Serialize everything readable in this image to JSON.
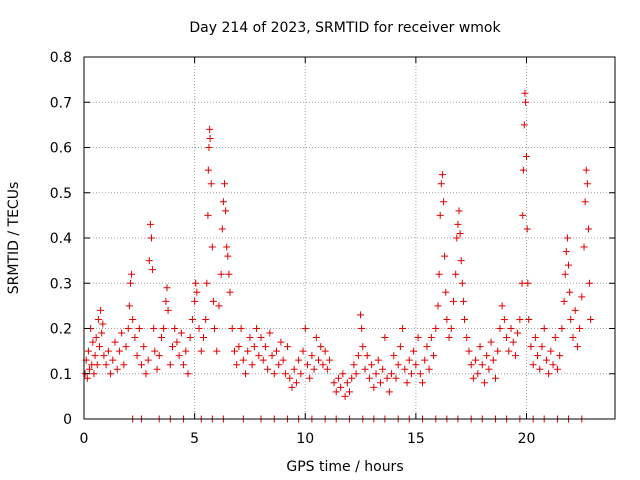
{
  "chart_data": {
    "type": "scatter",
    "title": "Day 214 of 2023, SRMTID for receiver wmok",
    "xlabel": "GPS time / hours",
    "ylabel": "SRMTID / TECUs",
    "xlim": [
      0,
      24
    ],
    "ylim": [
      0,
      0.8
    ],
    "xticks": [
      0,
      5,
      10,
      15,
      20
    ],
    "yticks": [
      0,
      0.1,
      0.2,
      0.3,
      0.4,
      0.5,
      0.6,
      0.7,
      0.8
    ],
    "xtick_labels": [
      "0",
      "5",
      "10",
      "15",
      "20"
    ],
    "ytick_labels": [
      "0",
      "0.1",
      "0.2",
      "0.3",
      "0.4",
      "0.5",
      "0.6",
      "0.7",
      "0.8"
    ],
    "grid": true,
    "marker": "+",
    "color": "#e00000",
    "series": [
      {
        "name": "SRMTID",
        "points": [
          [
            0.05,
            0.1
          ],
          [
            0.1,
            0.13
          ],
          [
            0.15,
            0.09
          ],
          [
            0.2,
            0.15
          ],
          [
            0.25,
            0.11
          ],
          [
            0.3,
            0.2
          ],
          [
            0.35,
            0.12
          ],
          [
            0.4,
            0.17
          ],
          [
            0.45,
            0.1
          ],
          [
            0.5,
            0.14
          ],
          [
            0.55,
            0.18
          ],
          [
            0.6,
            0.12
          ],
          [
            0.65,
            0.22
          ],
          [
            0.7,
            0.16
          ],
          [
            0.75,
            0.24
          ],
          [
            0.8,
            0.19
          ],
          [
            0.85,
            0.21
          ],
          [
            0.9,
            0.14
          ],
          [
            1.0,
            0.12
          ],
          [
            1.1,
            0.15
          ],
          [
            1.2,
            0.1
          ],
          [
            1.3,
            0.13
          ],
          [
            1.4,
            0.17
          ],
          [
            1.5,
            0.11
          ],
          [
            1.6,
            0.15
          ],
          [
            1.7,
            0.19
          ],
          [
            1.8,
            0.12
          ],
          [
            1.9,
            0.16
          ],
          [
            2.0,
            0.2
          ],
          [
            2.05,
            0.25
          ],
          [
            2.1,
            0.3
          ],
          [
            2.15,
            0.32
          ],
          [
            2.2,
            0.22
          ],
          [
            2.3,
            0.18
          ],
          [
            2.4,
            0.14
          ],
          [
            2.5,
            0.2
          ],
          [
            2.6,
            0.12
          ],
          [
            2.7,
            0.16
          ],
          [
            2.8,
            0.1
          ],
          [
            2.9,
            0.13
          ],
          [
            2.95,
            0.35
          ],
          [
            3.0,
            0.43
          ],
          [
            3.05,
            0.4
          ],
          [
            3.1,
            0.33
          ],
          [
            3.15,
            0.2
          ],
          [
            3.2,
            0.15
          ],
          [
            3.3,
            0.11
          ],
          [
            3.4,
            0.14
          ],
          [
            3.5,
            0.18
          ],
          [
            3.6,
            0.2
          ],
          [
            3.7,
            0.26
          ],
          [
            3.75,
            0.29
          ],
          [
            3.8,
            0.24
          ],
          [
            3.9,
            0.12
          ],
          [
            4.0,
            0.16
          ],
          [
            4.1,
            0.2
          ],
          [
            4.2,
            0.17
          ],
          [
            4.3,
            0.14
          ],
          [
            4.4,
            0.19
          ],
          [
            4.5,
            0.12
          ],
          [
            4.6,
            0.15
          ],
          [
            4.7,
            0.1
          ],
          [
            4.8,
            0.18
          ],
          [
            4.9,
            0.22
          ],
          [
            5.0,
            0.26
          ],
          [
            5.05,
            0.3
          ],
          [
            5.1,
            0.28
          ],
          [
            5.2,
            0.2
          ],
          [
            5.3,
            0.15
          ],
          [
            5.4,
            0.18
          ],
          [
            5.5,
            0.22
          ],
          [
            5.55,
            0.3
          ],
          [
            5.6,
            0.45
          ],
          [
            5.62,
            0.55
          ],
          [
            5.65,
            0.6
          ],
          [
            5.68,
            0.64
          ],
          [
            5.7,
            0.62
          ],
          [
            5.75,
            0.52
          ],
          [
            5.8,
            0.38
          ],
          [
            5.85,
            0.26
          ],
          [
            5.9,
            0.2
          ],
          [
            6.0,
            0.15
          ],
          [
            6.1,
            0.25
          ],
          [
            6.2,
            0.32
          ],
          [
            6.25,
            0.42
          ],
          [
            6.3,
            0.48
          ],
          [
            6.35,
            0.52
          ],
          [
            6.4,
            0.46
          ],
          [
            6.45,
            0.38
          ],
          [
            6.5,
            0.36
          ],
          [
            6.55,
            0.32
          ],
          [
            6.6,
            0.28
          ],
          [
            6.7,
            0.2
          ],
          [
            6.8,
            0.15
          ],
          [
            6.9,
            0.12
          ],
          [
            7.0,
            0.16
          ],
          [
            7.1,
            0.2
          ],
          [
            7.2,
            0.13
          ],
          [
            7.3,
            0.1
          ],
          [
            7.4,
            0.15
          ],
          [
            7.5,
            0.18
          ],
          [
            7.6,
            0.12
          ],
          [
            7.7,
            0.16
          ],
          [
            7.8,
            0.2
          ],
          [
            7.9,
            0.14
          ],
          [
            8.0,
            0.18
          ],
          [
            8.1,
            0.13
          ],
          [
            8.2,
            0.16
          ],
          [
            8.3,
            0.11
          ],
          [
            8.4,
            0.19
          ],
          [
            8.5,
            0.14
          ],
          [
            8.6,
            0.1
          ],
          [
            8.7,
            0.15
          ],
          [
            8.8,
            0.12
          ],
          [
            8.9,
            0.17
          ],
          [
            9.0,
            0.13
          ],
          [
            9.1,
            0.1
          ],
          [
            9.2,
            0.16
          ],
          [
            9.3,
            0.09
          ],
          [
            9.4,
            0.07
          ],
          [
            9.5,
            0.11
          ],
          [
            9.6,
            0.08
          ],
          [
            9.7,
            0.13
          ],
          [
            9.8,
            0.1
          ],
          [
            9.9,
            0.15
          ],
          [
            10.0,
            0.2
          ],
          [
            10.1,
            0.12
          ],
          [
            10.2,
            0.09
          ],
          [
            10.3,
            0.14
          ],
          [
            10.4,
            0.11
          ],
          [
            10.5,
            0.18
          ],
          [
            10.6,
            0.13
          ],
          [
            10.7,
            0.16
          ],
          [
            10.8,
            0.12
          ],
          [
            10.9,
            0.15
          ],
          [
            11.0,
            0.11
          ],
          [
            11.1,
            0.13
          ],
          [
            11.3,
            0.08
          ],
          [
            11.4,
            0.06
          ],
          [
            11.5,
            0.09
          ],
          [
            11.6,
            0.07
          ],
          [
            11.7,
            0.1
          ],
          [
            11.8,
            0.05
          ],
          [
            11.9,
            0.08
          ],
          [
            12.0,
            0.06
          ],
          [
            12.1,
            0.09
          ],
          [
            12.2,
            0.12
          ],
          [
            12.3,
            0.1
          ],
          [
            12.4,
            0.14
          ],
          [
            12.5,
            0.23
          ],
          [
            12.55,
            0.2
          ],
          [
            12.6,
            0.16
          ],
          [
            12.7,
            0.11
          ],
          [
            12.8,
            0.14
          ],
          [
            12.9,
            0.09
          ],
          [
            13.0,
            0.12
          ],
          [
            13.1,
            0.07
          ],
          [
            13.2,
            0.1
          ],
          [
            13.3,
            0.13
          ],
          [
            13.4,
            0.08
          ],
          [
            13.5,
            0.11
          ],
          [
            13.6,
            0.18
          ],
          [
            13.7,
            0.09
          ],
          [
            13.8,
            0.06
          ],
          [
            13.9,
            0.1
          ],
          [
            14.0,
            0.14
          ],
          [
            14.1,
            0.09
          ],
          [
            14.2,
            0.12
          ],
          [
            14.3,
            0.16
          ],
          [
            14.4,
            0.2
          ],
          [
            14.5,
            0.11
          ],
          [
            14.6,
            0.08
          ],
          [
            14.7,
            0.13
          ],
          [
            14.8,
            0.1
          ],
          [
            14.9,
            0.15
          ],
          [
            15.0,
            0.12
          ],
          [
            15.1,
            0.18
          ],
          [
            15.2,
            0.1
          ],
          [
            15.3,
            0.08
          ],
          [
            15.4,
            0.13
          ],
          [
            15.5,
            0.16
          ],
          [
            15.6,
            0.11
          ],
          [
            15.7,
            0.18
          ],
          [
            15.8,
            0.14
          ],
          [
            15.9,
            0.2
          ],
          [
            16.0,
            0.25
          ],
          [
            16.05,
            0.32
          ],
          [
            16.1,
            0.45
          ],
          [
            16.15,
            0.52
          ],
          [
            16.2,
            0.54
          ],
          [
            16.25,
            0.48
          ],
          [
            16.3,
            0.36
          ],
          [
            16.35,
            0.28
          ],
          [
            16.4,
            0.22
          ],
          [
            16.5,
            0.18
          ],
          [
            16.6,
            0.2
          ],
          [
            16.7,
            0.26
          ],
          [
            16.8,
            0.32
          ],
          [
            16.85,
            0.4
          ],
          [
            16.9,
            0.43
          ],
          [
            16.95,
            0.46
          ],
          [
            17.0,
            0.41
          ],
          [
            17.05,
            0.35
          ],
          [
            17.1,
            0.3
          ],
          [
            17.15,
            0.26
          ],
          [
            17.2,
            0.22
          ],
          [
            17.3,
            0.18
          ],
          [
            17.4,
            0.15
          ],
          [
            17.5,
            0.12
          ],
          [
            17.6,
            0.09
          ],
          [
            17.7,
            0.13
          ],
          [
            17.8,
            0.1
          ],
          [
            17.9,
            0.16
          ],
          [
            18.0,
            0.12
          ],
          [
            18.1,
            0.08
          ],
          [
            18.2,
            0.14
          ],
          [
            18.3,
            0.11
          ],
          [
            18.4,
            0.17
          ],
          [
            18.5,
            0.13
          ],
          [
            18.6,
            0.09
          ],
          [
            18.7,
            0.15
          ],
          [
            18.8,
            0.2
          ],
          [
            18.9,
            0.25
          ],
          [
            19.0,
            0.22
          ],
          [
            19.1,
            0.18
          ],
          [
            19.2,
            0.15
          ],
          [
            19.3,
            0.2
          ],
          [
            19.4,
            0.17
          ],
          [
            19.5,
            0.14
          ],
          [
            19.6,
            0.19
          ],
          [
            19.7,
            0.22
          ],
          [
            19.8,
            0.3
          ],
          [
            19.83,
            0.45
          ],
          [
            19.86,
            0.55
          ],
          [
            19.9,
            0.65
          ],
          [
            19.93,
            0.72
          ],
          [
            19.96,
            0.7
          ],
          [
            20.0,
            0.58
          ],
          [
            20.03,
            0.42
          ],
          [
            20.06,
            0.3
          ],
          [
            20.1,
            0.22
          ],
          [
            20.2,
            0.16
          ],
          [
            20.3,
            0.12
          ],
          [
            20.4,
            0.18
          ],
          [
            20.5,
            0.14
          ],
          [
            20.6,
            0.11
          ],
          [
            20.7,
            0.16
          ],
          [
            20.8,
            0.2
          ],
          [
            20.9,
            0.13
          ],
          [
            21.0,
            0.1
          ],
          [
            21.1,
            0.15
          ],
          [
            21.2,
            0.12
          ],
          [
            21.3,
            0.18
          ],
          [
            21.4,
            0.11
          ],
          [
            21.5,
            0.14
          ],
          [
            21.6,
            0.2
          ],
          [
            21.7,
            0.26
          ],
          [
            21.75,
            0.32
          ],
          [
            21.8,
            0.37
          ],
          [
            21.85,
            0.4
          ],
          [
            21.9,
            0.34
          ],
          [
            21.95,
            0.28
          ],
          [
            22.0,
            0.22
          ],
          [
            22.1,
            0.18
          ],
          [
            22.2,
            0.24
          ],
          [
            22.3,
            0.16
          ],
          [
            22.4,
            0.2
          ],
          [
            22.5,
            0.27
          ],
          [
            22.6,
            0.38
          ],
          [
            22.65,
            0.48
          ],
          [
            22.7,
            0.55
          ],
          [
            22.75,
            0.52
          ],
          [
            22.8,
            0.42
          ],
          [
            22.85,
            0.3
          ],
          [
            22.9,
            0.22
          ]
        ],
        "zero_points": [
          2.2,
          2.6,
          3.4,
          3.9,
          4.5,
          5.3,
          5.8,
          6.3,
          7.2,
          8.0,
          8.6,
          9.2,
          9.7,
          10.3,
          10.9,
          11.4,
          12.0,
          12.6,
          13.1,
          13.6,
          14.2,
          14.7,
          15.3,
          15.9,
          16.4,
          16.9,
          17.5,
          18.0,
          18.6,
          19.1,
          19.7,
          20.3,
          20.8,
          21.4,
          21.9,
          22.5
        ]
      }
    ]
  }
}
